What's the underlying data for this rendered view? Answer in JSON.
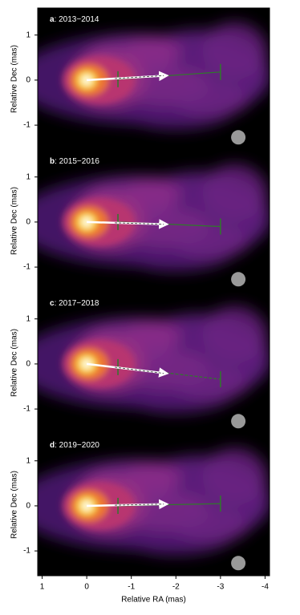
{
  "chart_data": [
    {
      "type": "image",
      "panel_label": "a",
      "title": ": 2013−2014",
      "ylabel": "Relative Dec (mas)",
      "xlim": [
        1.1,
        -4.1
      ],
      "ylim": [
        -1.55,
        1.6
      ],
      "yticks": [
        1,
        0,
        -1
      ],
      "jet_vector": {
        "x": [
          0,
          -1.8
        ],
        "y": [
          0,
          0.1
        ]
      },
      "fit_line": {
        "x": [
          -0.7,
          -3
        ],
        "y": [
          0.02,
          0.18
        ]
      },
      "beam": {
        "x": -3.4,
        "y": -1.27
      }
    },
    {
      "type": "image",
      "panel_label": "b",
      "title": ": 2015−2016",
      "ylabel": "Relative Dec (mas)",
      "xlim": [
        1.1,
        -4.1
      ],
      "ylim": [
        -1.55,
        1.6
      ],
      "yticks": [
        1,
        0,
        -1
      ],
      "jet_vector": {
        "x": [
          0,
          -1.8
        ],
        "y": [
          0,
          -0.05
        ]
      },
      "fit_line": {
        "x": [
          -0.7,
          -3
        ],
        "y": [
          0,
          -0.1
        ]
      },
      "beam": {
        "x": -3.4,
        "y": -1.27
      }
    },
    {
      "type": "image",
      "panel_label": "c",
      "title": ": 2017−2018",
      "ylabel": "Relative Dec (mas)",
      "xlim": [
        1.1,
        -4.1
      ],
      "ylim": [
        -1.55,
        1.6
      ],
      "yticks": [
        1,
        0,
        -1
      ],
      "jet_vector": {
        "x": [
          0,
          -1.8
        ],
        "y": [
          0,
          -0.21
        ]
      },
      "fit_line": {
        "x": [
          -0.7,
          -3
        ],
        "y": [
          -0.07,
          -0.34
        ]
      },
      "beam": {
        "x": -3.4,
        "y": -1.27
      }
    },
    {
      "type": "image",
      "panel_label": "d",
      "title": ": 2019−2020",
      "ylabel": "Relative Dec (mas)",
      "xlim": [
        1.1,
        -4.1
      ],
      "ylim": [
        -1.55,
        1.6
      ],
      "yticks": [
        1,
        0,
        -1
      ],
      "xlabel": "Relative RA (mas)",
      "xticks": [
        1,
        0,
        -1,
        -2,
        -3,
        -4
      ],
      "jet_vector": {
        "x": [
          0,
          -1.8
        ],
        "y": [
          0,
          0.04
        ]
      },
      "fit_line": {
        "x": [
          -0.7,
          -3
        ],
        "y": [
          0,
          0.05
        ]
      },
      "beam": {
        "x": -3.4,
        "y": -1.27
      }
    }
  ]
}
